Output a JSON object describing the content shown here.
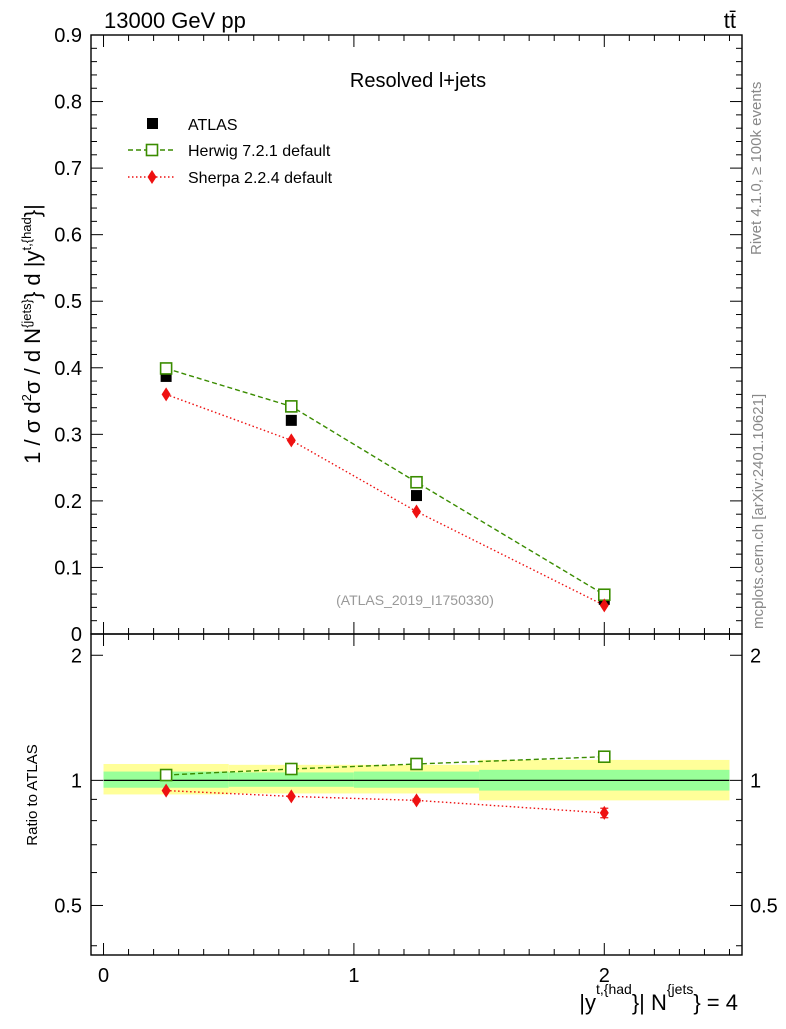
{
  "chart_data": {
    "type": "scatter",
    "header_left": "13000 GeV pp",
    "header_right": "tt̄",
    "title": "Resolved l+jets",
    "analysis_id": "(ATLAS_2019_I1750330)",
    "side_label_top": "Rivet 4.1.0, ≥ 100k events",
    "side_label_bottom": "mcplots.cern.ch [arXiv:2401.10621]",
    "ylabel": {
      "prefix": "1 / σ d",
      "sup1": "2",
      "mid1": "σ / d N",
      "sup2": "{jets}",
      "mid2": "} d |y",
      "sup3": "t,{had",
      "end": "}|"
    },
    "xlabel": {
      "prefix": "|y",
      "sup1": "t,{had",
      "mid": "}| N",
      "sup2": "{jets",
      "end": "} = 4"
    },
    "ratio_ylabel": "Ratio to ATLAS",
    "xlim": [
      -0.05,
      2.55
    ],
    "ylim": [
      0,
      0.9
    ],
    "ratio_ylim": [
      0.38,
      2.25
    ],
    "x_ticks": [
      0,
      1,
      2
    ],
    "x_tick_labels": [
      "0",
      "1",
      "2"
    ],
    "y_ticks": [
      0.1,
      0.2,
      0.3,
      0.4,
      0.5,
      0.6,
      0.7,
      0.8,
      0.9
    ],
    "y_tick_labels": [
      "0.1",
      "0.2",
      "0.3",
      "0.4",
      "0.5",
      "0.6",
      "0.7",
      "0.8",
      "0.9"
    ],
    "y_zero_label": "0",
    "ratio_y_ticks": [
      0.5,
      1,
      2
    ],
    "ratio_y_tick_labels": [
      "0.5",
      "1",
      "2"
    ],
    "bins": [
      [
        0,
        0.5
      ],
      [
        0.5,
        1.0
      ],
      [
        1.0,
        1.5
      ],
      [
        1.5,
        2.5
      ]
    ],
    "x": [
      0.25,
      0.75,
      1.25,
      2.0
    ],
    "data": {
      "name": "ATLAS",
      "values": [
        0.387,
        0.321,
        0.208,
        0.052
      ],
      "ratio_band_inner": [
        [
          0.96,
          1.05
        ],
        [
          0.965,
          1.045
        ],
        [
          0.96,
          1.05
        ],
        [
          0.945,
          1.06
        ]
      ],
      "ratio_band_outer": [
        [
          0.925,
          1.095
        ],
        [
          0.93,
          1.09
        ],
        [
          0.93,
          1.09
        ],
        [
          0.895,
          1.12
        ]
      ]
    },
    "series": [
      {
        "name": "Herwig 7.2.1 default",
        "color": "#3a8c00",
        "marker": "open-square",
        "line": "dashed",
        "values": [
          0.399,
          0.342,
          0.228,
          0.059
        ],
        "ratio": [
          1.03,
          1.065,
          1.095,
          1.14
        ],
        "ratio_err": [
          0.004,
          0.004,
          0.007,
          0.02
        ]
      },
      {
        "name": "Sherpa 2.2.4 default",
        "color": "#ee1111",
        "marker": "diamond",
        "line": "dotted",
        "values": [
          0.36,
          0.291,
          0.184,
          0.043
        ],
        "ratio": [
          0.945,
          0.915,
          0.895,
          0.835
        ],
        "ratio_err": [
          0.004,
          0.004,
          0.007,
          0.022
        ]
      }
    ]
  }
}
